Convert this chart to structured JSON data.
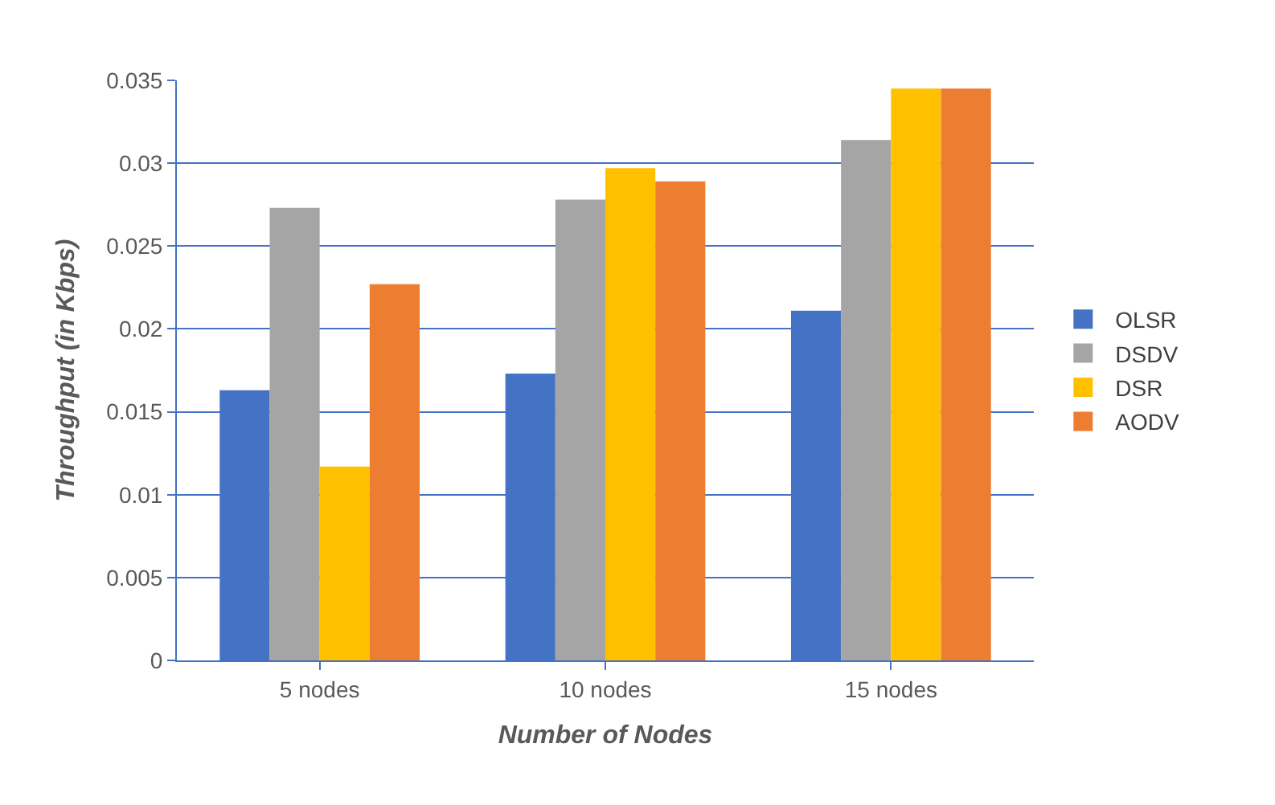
{
  "chart_data": {
    "type": "bar",
    "xlabel": "Number of Nodes",
    "ylabel": "Throughput (in Kbps)",
    "categories": [
      "5 nodes",
      "10 nodes",
      "15 nodes"
    ],
    "series": [
      {
        "name": "OLSR",
        "color": "#4472c4",
        "values": [
          0.0163,
          0.0173,
          0.0211
        ]
      },
      {
        "name": "DSDV",
        "color": "#a5a5a5",
        "values": [
          0.0273,
          0.0278,
          0.0314
        ]
      },
      {
        "name": "DSR",
        "color": "#ffc000",
        "values": [
          0.0117,
          0.0297,
          0.0345
        ]
      },
      {
        "name": "AODV",
        "color": "#ed7d31",
        "values": [
          0.0227,
          0.0289,
          0.0345
        ]
      }
    ],
    "ylim": [
      0,
      0.035
    ],
    "yticks": [
      0,
      0.005,
      0.01,
      0.015,
      0.02,
      0.025,
      0.03,
      0.035
    ],
    "grid": "y",
    "legend": "right"
  }
}
